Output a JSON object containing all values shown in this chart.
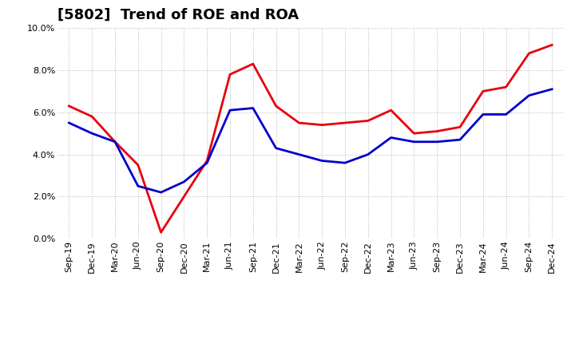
{
  "title": "[5802]  Trend of ROE and ROA",
  "x_labels": [
    "Sep-19",
    "Dec-19",
    "Mar-20",
    "Jun-20",
    "Sep-20",
    "Dec-20",
    "Mar-21",
    "Jun-21",
    "Sep-21",
    "Dec-21",
    "Mar-22",
    "Jun-22",
    "Sep-22",
    "Dec-22",
    "Mar-23",
    "Jun-23",
    "Sep-23",
    "Dec-23",
    "Mar-24",
    "Jun-24",
    "Sep-24",
    "Dec-24"
  ],
  "roe": [
    6.3,
    5.8,
    4.6,
    3.5,
    0.3,
    2.0,
    3.7,
    7.8,
    8.3,
    6.3,
    5.5,
    5.4,
    5.5,
    5.6,
    6.1,
    5.0,
    5.1,
    5.3,
    7.0,
    7.2,
    8.8,
    9.2
  ],
  "roa": [
    5.5,
    5.0,
    4.6,
    2.5,
    2.2,
    2.7,
    3.6,
    6.1,
    6.2,
    4.3,
    4.0,
    3.7,
    3.6,
    4.0,
    4.8,
    4.6,
    4.6,
    4.7,
    5.9,
    5.9,
    6.8,
    7.1
  ],
  "roe_color": "#e8000d",
  "roa_color": "#0000cc",
  "grid_color": "#aaaaaa",
  "background_color": "#ffffff",
  "ylim": [
    0.0,
    10.0
  ],
  "yticks": [
    0.0,
    2.0,
    4.0,
    6.0,
    8.0,
    10.0
  ],
  "linewidth": 2.0,
  "title_fontsize": 13,
  "legend_fontsize": 10,
  "tick_fontsize": 8
}
